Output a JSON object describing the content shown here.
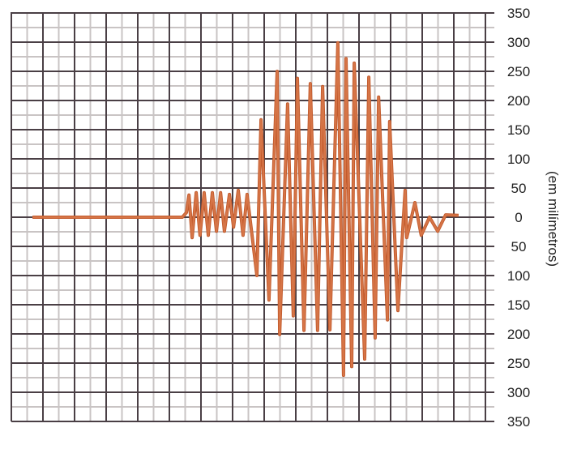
{
  "chart_data": {
    "type": "line",
    "title": "",
    "xlabel": "",
    "ylabel": "(em milímetros)",
    "ylim": [
      -350,
      350
    ],
    "y_ticks": [
      350,
      300,
      250,
      200,
      150,
      100,
      50,
      0,
      -50,
      -100,
      -150,
      -200,
      -250,
      -300,
      -350
    ],
    "y_tick_labels": [
      "350",
      "300",
      "250",
      "200",
      "150",
      "100",
      "50",
      "0",
      "50",
      "100",
      "150",
      "200",
      "250",
      "300",
      "350"
    ],
    "x_unit": "grid divisions",
    "xlim": [
      0,
      15.3
    ],
    "grid": true,
    "colors": {
      "trace": "#d8784a",
      "trace_dark": "#c25a2c",
      "grid_major": "#4a3f45",
      "grid_minor": "#c9c4c4"
    },
    "series": [
      {
        "x": [
          0.67,
          5.41,
          5.54,
          5.62,
          5.72,
          5.85,
          5.97,
          6.1,
          6.23,
          6.36,
          6.49,
          6.62,
          6.74,
          6.9,
          7.03,
          7.18,
          7.33,
          7.46,
          7.77,
          7.9,
          8.15,
          8.41,
          8.49,
          8.74,
          8.92,
          9.05,
          9.26,
          9.46,
          9.69,
          9.85,
          10.08,
          10.33,
          10.51,
          10.59,
          10.77,
          10.85,
          11.18,
          11.31,
          11.51,
          11.62,
          11.9,
          11.97,
          12.23,
          12.46,
          12.51,
          12.77,
          12.97,
          13.23,
          13.49,
          13.74,
          14.15
        ],
        "y": [
          0,
          0,
          8,
          38,
          -35,
          42,
          -31,
          42,
          -31,
          42,
          -24,
          42,
          -24,
          39,
          -17,
          46,
          -31,
          39,
          -100,
          167,
          -142,
          250,
          -201,
          194,
          -169,
          238,
          -194,
          229,
          -194,
          224,
          -193,
          299,
          -271,
          272,
          -256,
          264,
          -243,
          240,
          -207,
          206,
          -176,
          164,
          -160,
          46,
          -35,
          25,
          -31,
          0,
          -24,
          4,
          3
        ]
      }
    ]
  }
}
